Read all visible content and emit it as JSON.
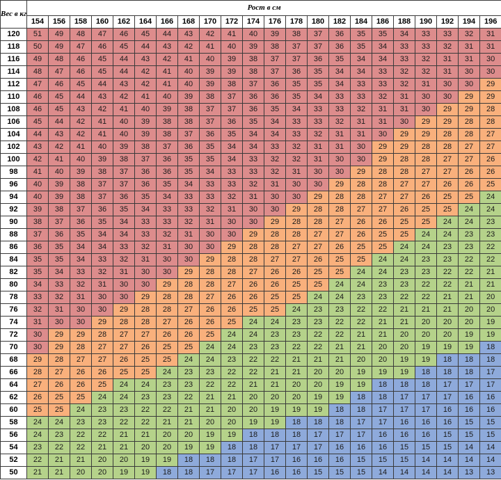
{
  "header": {
    "weight_label": "Вес в кг",
    "height_label": "Рост в см"
  },
  "heights": [
    "154",
    "156",
    "158",
    "160",
    "162",
    "164",
    "166",
    "168",
    "170",
    "172",
    "174",
    "176",
    "178",
    "180",
    "182",
    "184",
    "186",
    "188",
    "190",
    "192",
    "194",
    "196"
  ],
  "colors": {
    "red": "#dd8c8c",
    "orange": "#f9b07c",
    "green": "#b5d28a",
    "blue": "#8eaadb"
  },
  "rows": [
    {
      "weight": "120",
      "values": [
        "51",
        "49",
        "48",
        "47",
        "46",
        "45",
        "44",
        "43",
        "42",
        "41",
        "40",
        "39",
        "38",
        "37",
        "36",
        "35",
        "35",
        "34",
        "33",
        "33",
        "32",
        "31"
      ]
    },
    {
      "weight": "118",
      "values": [
        "50",
        "49",
        "47",
        "46",
        "45",
        "44",
        "43",
        "42",
        "41",
        "40",
        "39",
        "38",
        "37",
        "37",
        "36",
        "35",
        "34",
        "33",
        "33",
        "32",
        "31",
        "31"
      ]
    },
    {
      "weight": "116",
      "values": [
        "49",
        "48",
        "46",
        "45",
        "44",
        "43",
        "42",
        "41",
        "40",
        "39",
        "38",
        "37",
        "37",
        "36",
        "35",
        "34",
        "34",
        "33",
        "32",
        "31",
        "31",
        "30"
      ]
    },
    {
      "weight": "114",
      "values": [
        "48",
        "47",
        "46",
        "45",
        "44",
        "42",
        "41",
        "40",
        "39",
        "39",
        "38",
        "37",
        "36",
        "35",
        "34",
        "34",
        "33",
        "32",
        "32",
        "31",
        "30",
        "30"
      ]
    },
    {
      "weight": "112",
      "values": [
        "47",
        "46",
        "45",
        "44",
        "43",
        "42",
        "41",
        "40",
        "39",
        "38",
        "37",
        "36",
        "35",
        "35",
        "34",
        "33",
        "33",
        "32",
        "31",
        "30",
        "30",
        "29"
      ]
    },
    {
      "weight": "110",
      "values": [
        "46",
        "45",
        "44",
        "43",
        "42",
        "41",
        "40",
        "39",
        "38",
        "37",
        "36",
        "36",
        "35",
        "34",
        "33",
        "33",
        "32",
        "31",
        "30",
        "30",
        "29",
        "29"
      ]
    },
    {
      "weight": "108",
      "values": [
        "46",
        "45",
        "43",
        "42",
        "41",
        "40",
        "39",
        "38",
        "37",
        "37",
        "36",
        "35",
        "34",
        "33",
        "33",
        "32",
        "31",
        "31",
        "30",
        "29",
        "29",
        "28"
      ]
    },
    {
      "weight": "106",
      "values": [
        "45",
        "44",
        "42",
        "41",
        "40",
        "39",
        "38",
        "38",
        "37",
        "36",
        "35",
        "34",
        "33",
        "33",
        "32",
        "31",
        "31",
        "30",
        "29",
        "29",
        "28",
        "28"
      ]
    },
    {
      "weight": "104",
      "values": [
        "44",
        "43",
        "42",
        "41",
        "40",
        "39",
        "38",
        "37",
        "36",
        "35",
        "34",
        "34",
        "33",
        "32",
        "31",
        "31",
        "30",
        "29",
        "29",
        "28",
        "28",
        "27"
      ]
    },
    {
      "weight": "102",
      "values": [
        "43",
        "42",
        "41",
        "40",
        "39",
        "38",
        "37",
        "36",
        "35",
        "34",
        "34",
        "33",
        "32",
        "31",
        "31",
        "30",
        "29",
        "29",
        "28",
        "28",
        "27",
        "27"
      ]
    },
    {
      "weight": "100",
      "values": [
        "42",
        "41",
        "40",
        "39",
        "38",
        "37",
        "36",
        "35",
        "35",
        "34",
        "33",
        "32",
        "32",
        "31",
        "30",
        "30",
        "29",
        "28",
        "28",
        "27",
        "27",
        "26"
      ]
    },
    {
      "weight": "98",
      "values": [
        "41",
        "40",
        "39",
        "38",
        "37",
        "36",
        "36",
        "35",
        "34",
        "33",
        "33",
        "32",
        "31",
        "30",
        "30",
        "29",
        "28",
        "28",
        "27",
        "27",
        "26",
        "26"
      ]
    },
    {
      "weight": "96",
      "values": [
        "40",
        "39",
        "38",
        "37",
        "37",
        "36",
        "35",
        "34",
        "33",
        "33",
        "32",
        "31",
        "30",
        "30",
        "29",
        "28",
        "28",
        "27",
        "27",
        "26",
        "26",
        "25"
      ]
    },
    {
      "weight": "94",
      "values": [
        "40",
        "39",
        "38",
        "37",
        "36",
        "35",
        "34",
        "33",
        "33",
        "32",
        "31",
        "30",
        "30",
        "29",
        "28",
        "28",
        "27",
        "27",
        "26",
        "25",
        "25",
        "24"
      ]
    },
    {
      "weight": "92",
      "values": [
        "39",
        "38",
        "37",
        "36",
        "35",
        "34",
        "33",
        "33",
        "32",
        "31",
        "30",
        "30",
        "29",
        "28",
        "28",
        "27",
        "27",
        "26",
        "25",
        "25",
        "24",
        "24"
      ]
    },
    {
      "weight": "90",
      "values": [
        "38",
        "37",
        "36",
        "35",
        "34",
        "33",
        "33",
        "32",
        "31",
        "30",
        "30",
        "29",
        "28",
        "28",
        "27",
        "26",
        "26",
        "25",
        "25",
        "24",
        "24",
        "23"
      ]
    },
    {
      "weight": "88",
      "values": [
        "37",
        "36",
        "35",
        "34",
        "34",
        "33",
        "32",
        "31",
        "30",
        "30",
        "29",
        "28",
        "28",
        "27",
        "27",
        "26",
        "25",
        "25",
        "24",
        "24",
        "23",
        "23"
      ]
    },
    {
      "weight": "86",
      "values": [
        "36",
        "35",
        "34",
        "34",
        "33",
        "32",
        "31",
        "30",
        "30",
        "29",
        "28",
        "28",
        "27",
        "27",
        "26",
        "25",
        "25",
        "24",
        "24",
        "23",
        "23",
        "22"
      ]
    },
    {
      "weight": "84",
      "values": [
        "35",
        "35",
        "34",
        "33",
        "32",
        "31",
        "30",
        "30",
        "29",
        "28",
        "28",
        "27",
        "27",
        "26",
        "25",
        "25",
        "24",
        "24",
        "23",
        "23",
        "22",
        "22"
      ]
    },
    {
      "weight": "82",
      "values": [
        "35",
        "34",
        "33",
        "32",
        "31",
        "30",
        "30",
        "29",
        "28",
        "28",
        "27",
        "26",
        "26",
        "25",
        "25",
        "24",
        "24",
        "23",
        "23",
        "22",
        "22",
        "21"
      ]
    },
    {
      "weight": "80",
      "values": [
        "34",
        "33",
        "32",
        "31",
        "30",
        "30",
        "29",
        "28",
        "28",
        "27",
        "26",
        "26",
        "25",
        "25",
        "24",
        "24",
        "23",
        "23",
        "22",
        "22",
        "21",
        "21"
      ]
    },
    {
      "weight": "78",
      "values": [
        "33",
        "32",
        "31",
        "30",
        "30",
        "29",
        "28",
        "28",
        "27",
        "26",
        "26",
        "25",
        "25",
        "24",
        "24",
        "23",
        "23",
        "22",
        "22",
        "21",
        "21",
        "20"
      ]
    },
    {
      "weight": "76",
      "values": [
        "32",
        "31",
        "30",
        "30",
        "29",
        "28",
        "28",
        "27",
        "26",
        "26",
        "25",
        "25",
        "24",
        "23",
        "23",
        "22",
        "22",
        "21",
        "21",
        "21",
        "20",
        "20"
      ]
    },
    {
      "weight": "74",
      "values": [
        "31",
        "30",
        "30",
        "29",
        "28",
        "28",
        "27",
        "26",
        "26",
        "25",
        "24",
        "24",
        "23",
        "23",
        "22",
        "22",
        "21",
        "21",
        "20",
        "20",
        "20",
        "19"
      ]
    },
    {
      "weight": "72",
      "values": [
        "30",
        "29",
        "29",
        "28",
        "27",
        "27",
        "26",
        "26",
        "25",
        "24",
        "24",
        "23",
        "23",
        "22",
        "22",
        "21",
        "21",
        "20",
        "20",
        "20",
        "19",
        "19"
      ]
    },
    {
      "weight": "70",
      "values": [
        "30",
        "29",
        "28",
        "27",
        "27",
        "26",
        "25",
        "25",
        "24",
        "24",
        "23",
        "23",
        "22",
        "22",
        "21",
        "21",
        "20",
        "20",
        "19",
        "19",
        "19",
        "18"
      ]
    },
    {
      "weight": "68",
      "values": [
        "29",
        "28",
        "27",
        "27",
        "26",
        "25",
        "25",
        "24",
        "24",
        "23",
        "22",
        "22",
        "21",
        "21",
        "21",
        "20",
        "20",
        "19",
        "19",
        "18",
        "18",
        "18"
      ]
    },
    {
      "weight": "66",
      "values": [
        "28",
        "27",
        "26",
        "26",
        "25",
        "25",
        "24",
        "23",
        "23",
        "22",
        "22",
        "21",
        "21",
        "20",
        "20",
        "19",
        "19",
        "19",
        "18",
        "18",
        "18",
        "17"
      ]
    },
    {
      "weight": "64",
      "values": [
        "27",
        "26",
        "26",
        "25",
        "24",
        "24",
        "23",
        "23",
        "22",
        "22",
        "21",
        "21",
        "20",
        "20",
        "19",
        "19",
        "18",
        "18",
        "18",
        "17",
        "17",
        "17"
      ]
    },
    {
      "weight": "62",
      "values": [
        "26",
        "25",
        "25",
        "24",
        "24",
        "23",
        "23",
        "22",
        "21",
        "21",
        "20",
        "20",
        "20",
        "19",
        "19",
        "18",
        "18",
        "17",
        "17",
        "17",
        "16",
        "16"
      ]
    },
    {
      "weight": "60",
      "values": [
        "25",
        "25",
        "24",
        "23",
        "23",
        "22",
        "22",
        "21",
        "21",
        "20",
        "20",
        "19",
        "19",
        "19",
        "18",
        "18",
        "17",
        "17",
        "17",
        "16",
        "16",
        "16"
      ]
    },
    {
      "weight": "58",
      "values": [
        "24",
        "24",
        "23",
        "23",
        "22",
        "22",
        "21",
        "21",
        "20",
        "20",
        "19",
        "19",
        "18",
        "18",
        "18",
        "17",
        "17",
        "16",
        "16",
        "16",
        "15",
        "15"
      ]
    },
    {
      "weight": "56",
      "values": [
        "24",
        "23",
        "22",
        "22",
        "21",
        "21",
        "20",
        "20",
        "19",
        "19",
        "18",
        "18",
        "18",
        "17",
        "17",
        "17",
        "16",
        "16",
        "16",
        "15",
        "15",
        "15"
      ]
    },
    {
      "weight": "54",
      "values": [
        "23",
        "22",
        "22",
        "21",
        "21",
        "20",
        "20",
        "19",
        "19",
        "18",
        "18",
        "17",
        "17",
        "17",
        "16",
        "16",
        "16",
        "15",
        "15",
        "15",
        "14",
        "14"
      ]
    },
    {
      "weight": "52",
      "values": [
        "22",
        "21",
        "21",
        "20",
        "20",
        "19",
        "19",
        "18",
        "18",
        "18",
        "17",
        "17",
        "16",
        "16",
        "16",
        "15",
        "15",
        "15",
        "14",
        "14",
        "14",
        "14"
      ]
    },
    {
      "weight": "50",
      "values": [
        "21",
        "21",
        "20",
        "20",
        "19",
        "19",
        "18",
        "18",
        "17",
        "17",
        "17",
        "16",
        "16",
        "15",
        "15",
        "15",
        "14",
        "14",
        "14",
        "14",
        "13",
        "13"
      ]
    }
  ]
}
